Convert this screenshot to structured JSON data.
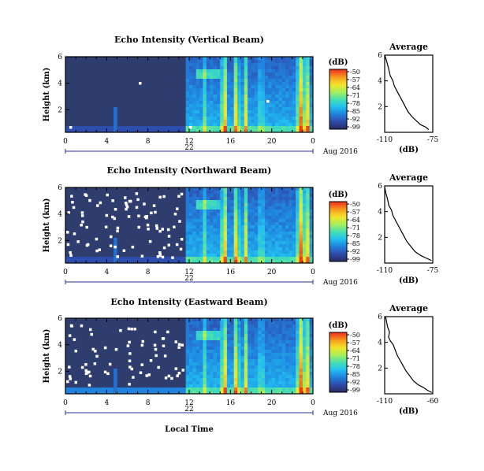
{
  "figure": {
    "xlabel": "Local Time",
    "date_label": "Aug 2016",
    "day_label": "22",
    "avg_xlabel": "(dB)",
    "colorbar_unit": "(dB)"
  },
  "colors": {
    "background_noise": "#2e3c6e",
    "colormap": [
      "#2a2f6a",
      "#2e4fb0",
      "#1f86e0",
      "#22c2f0",
      "#48e0b0",
      "#a8ee5a",
      "#f2e62a",
      "#f7a020",
      "#ee3a1c"
    ]
  },
  "chart_data": [
    {
      "type": "heatmap",
      "title": "Echo Intensity (Vertical Beam)",
      "ylabel": "Height (km)",
      "x": {
        "ticks": [
          "0",
          "4",
          "8",
          "12",
          "16",
          "20",
          "0"
        ],
        "range_hours": [
          0,
          24
        ]
      },
      "y": {
        "ticks": [
          "2",
          "4",
          "6"
        ],
        "range_km": [
          0.3,
          6.0
        ]
      },
      "colorbar": {
        "ticks": [
          "-50",
          "-57",
          "-64",
          "-71",
          "-78",
          "-85",
          "-92",
          "-99"
        ],
        "range_db": [
          -99,
          -50
        ]
      },
      "average_profile": {
        "title": "Average",
        "xticks": [
          "-110",
          "-75"
        ],
        "xlim": [
          -110,
          -75
        ],
        "yticks": [
          "2",
          "4",
          "6"
        ],
        "ylim": [
          0,
          6
        ],
        "points": [
          [
            -78,
            0.2
          ],
          [
            -80,
            0.4
          ],
          [
            -84,
            0.6
          ],
          [
            -87,
            0.9
          ],
          [
            -90,
            1.2
          ],
          [
            -93,
            1.6
          ],
          [
            -95,
            2.0
          ],
          [
            -97,
            2.4
          ],
          [
            -99,
            2.8
          ],
          [
            -101,
            3.2
          ],
          [
            -103,
            3.6
          ],
          [
            -104,
            4.0
          ],
          [
            -106,
            4.4
          ],
          [
            -107,
            4.9
          ],
          [
            -108,
            5.3
          ],
          [
            -109,
            5.7
          ],
          [
            -110,
            6.0
          ]
        ]
      }
    },
    {
      "type": "heatmap",
      "title": "Echo Intensity (Northward Beam)",
      "ylabel": "Height (km)",
      "x": {
        "ticks": [
          "0",
          "4",
          "8",
          "12",
          "16",
          "20",
          "0"
        ],
        "range_hours": [
          0,
          24
        ]
      },
      "y": {
        "ticks": [
          "2",
          "4",
          "6"
        ],
        "range_km": [
          0.3,
          6.0
        ]
      },
      "colorbar": {
        "ticks": [
          "-50",
          "-57",
          "-64",
          "-71",
          "-78",
          "-85",
          "-92",
          "-99"
        ],
        "range_db": [
          -99,
          -50
        ]
      },
      "average_profile": {
        "title": "Average",
        "xticks": [
          "-110",
          "-75"
        ],
        "xlim": [
          -110,
          -75
        ],
        "yticks": [
          "2",
          "4",
          "6"
        ],
        "ylim": [
          0,
          6
        ],
        "points": [
          [
            -76,
            0.2
          ],
          [
            -80,
            0.4
          ],
          [
            -84,
            0.6
          ],
          [
            -88,
            0.9
          ],
          [
            -91,
            1.3
          ],
          [
            -94,
            1.7
          ],
          [
            -96,
            2.1
          ],
          [
            -98,
            2.5
          ],
          [
            -100,
            2.9
          ],
          [
            -102,
            3.3
          ],
          [
            -104,
            3.7
          ],
          [
            -105,
            4.1
          ],
          [
            -107,
            4.5
          ],
          [
            -108,
            5.0
          ],
          [
            -109,
            5.4
          ],
          [
            -110,
            5.9
          ]
        ]
      }
    },
    {
      "type": "heatmap",
      "title": "Echo Intensity (Eastward Beam)",
      "ylabel": "Height (km)",
      "x": {
        "ticks": [
          "0",
          "4",
          "8",
          "12",
          "16",
          "20",
          "0"
        ],
        "range_hours": [
          0,
          24
        ]
      },
      "y": {
        "ticks": [
          "2",
          "4",
          "6"
        ],
        "range_km": [
          0.3,
          6.0
        ]
      },
      "colorbar": {
        "ticks": [
          "-50",
          "-57",
          "-64",
          "-71",
          "-78",
          "-85",
          "-92",
          "-99"
        ],
        "range_db": [
          -99,
          -50
        ]
      },
      "average_profile": {
        "title": "Average",
        "xticks": [
          "-110",
          "-60"
        ],
        "xlim": [
          -110,
          -60
        ],
        "yticks": [
          "2",
          "4",
          "6"
        ],
        "ylim": [
          0,
          6
        ],
        "points": [
          [
            -61,
            0.1
          ],
          [
            -66,
            0.3
          ],
          [
            -70,
            0.5
          ],
          [
            -75,
            0.7
          ],
          [
            -80,
            1.0
          ],
          [
            -84,
            1.4
          ],
          [
            -88,
            1.8
          ],
          [
            -91,
            2.2
          ],
          [
            -94,
            2.6
          ],
          [
            -97,
            3.0
          ],
          [
            -99,
            3.4
          ],
          [
            -101,
            3.8
          ],
          [
            -104,
            4.1
          ],
          [
            -106,
            4.4
          ],
          [
            -105,
            4.8
          ],
          [
            -107,
            5.2
          ],
          [
            -108,
            5.6
          ],
          [
            -109,
            6.0
          ]
        ]
      }
    }
  ]
}
